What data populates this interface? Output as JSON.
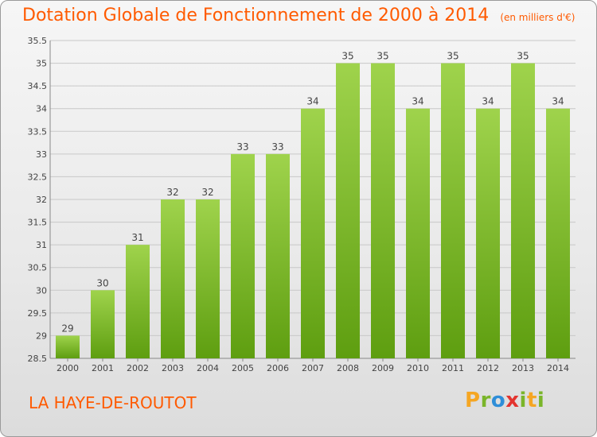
{
  "title": "Dotation Globale de Fonctionnement de 2000 à 2014",
  "unit_note": "(en milliers d'€)",
  "place": "LA HAYE-DE-ROUTOT",
  "logo": {
    "text": "Proxiti"
  },
  "colors": {
    "title": "#ff5a00",
    "bar_light": "#9fd34c",
    "bar_dark": "#5e9e10",
    "grid": "#c8c8c8",
    "logo_p": "#f5a623",
    "logo_r": "#7ab52a",
    "logo_o": "#2f8ed8",
    "logo_x": "#e3342f",
    "logo_i": "#7ab52a",
    "logo_t": "#f5a623"
  },
  "chart_data": {
    "type": "bar",
    "categories": [
      "2000",
      "2001",
      "2002",
      "2003",
      "2004",
      "2005",
      "2006",
      "2007",
      "2008",
      "2009",
      "2010",
      "2011",
      "2012",
      "2013",
      "2014"
    ],
    "values": [
      29,
      30,
      31,
      32,
      32,
      33,
      33,
      34,
      35,
      35,
      34,
      35,
      34,
      35,
      34
    ],
    "value_labels": [
      "29",
      "30",
      "31",
      "32",
      "32",
      "33",
      "33",
      "34",
      "35",
      "35",
      "34",
      "35",
      "34",
      "35",
      "34"
    ],
    "y_ticks": [
      "35.5",
      "35",
      "34.5",
      "34",
      "33.5",
      "33",
      "32.5",
      "32",
      "31.5",
      "31",
      "30.5",
      "30",
      "29.5",
      "29",
      "28.5"
    ],
    "ylim": [
      28.5,
      35.5
    ],
    "grid": true
  }
}
